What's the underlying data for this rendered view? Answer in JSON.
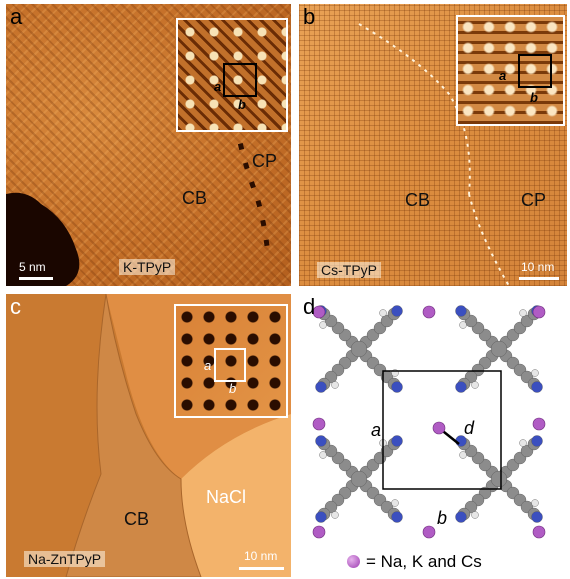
{
  "figure": {
    "panel_a": {
      "letter": "a",
      "region_left": "CB",
      "region_right": "CP",
      "sample": "K-TPyP",
      "scale": "5 nm",
      "inset_a": "a",
      "inset_b": "b"
    },
    "panel_b": {
      "letter": "b",
      "region_left": "CB",
      "region_right": "CP",
      "sample": "Cs-TPyP",
      "scale": "10 nm",
      "inset_a": "a",
      "inset_b": "b"
    },
    "panel_c": {
      "letter": "c",
      "region_left": "CB",
      "region_right": "NaCl",
      "sample": "Na-ZnTPyP",
      "scale": "10 nm",
      "inset_a": "a",
      "inset_b": "b"
    },
    "panel_d": {
      "letter": "d",
      "label_a": "a",
      "label_b": "b",
      "label_d": "d",
      "legend": "= Na, K and Cs"
    }
  },
  "colors": {
    "carbon": "#8c8c8c",
    "nitrogen": "#3b4fbf",
    "hydrogen": "#e6e6e6",
    "metal": "#b05cc4",
    "stm_orange": "#d4843a"
  }
}
